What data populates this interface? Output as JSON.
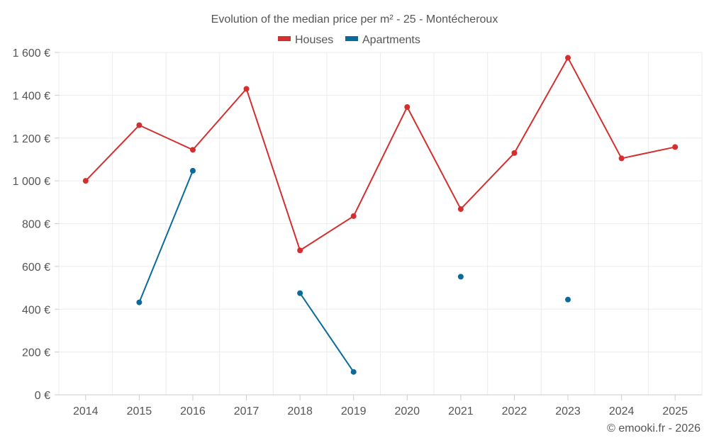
{
  "chart_data": {
    "type": "line",
    "title": "Evolution of the median price per m² - 25 - Montécheroux",
    "categories": [
      "2014",
      "2015",
      "2016",
      "2017",
      "2018",
      "2019",
      "2020",
      "2021",
      "2022",
      "2023",
      "2024",
      "2025"
    ],
    "ylim": [
      0,
      1600
    ],
    "yticks": [
      0,
      200,
      400,
      600,
      800,
      1000,
      1200,
      1400,
      1600
    ],
    "ytick_labels": [
      "0 €",
      "200 €",
      "400 €",
      "600 €",
      "800 €",
      "1 000 €",
      "1 200 €",
      "1 400 €",
      "1 600 €"
    ],
    "grid": true,
    "legend_position": "top-center",
    "series": [
      {
        "name": "Houses",
        "color": "#d32f2f",
        "values": [
          1000,
          1260,
          1145,
          1430,
          675,
          835,
          1345,
          868,
          1130,
          1575,
          1105,
          1158
        ]
      },
      {
        "name": "Apartments",
        "color": "#0a6a9c",
        "values": [
          null,
          432,
          1047,
          null,
          475,
          107,
          null,
          552,
          null,
          445,
          null,
          null
        ]
      }
    ]
  },
  "credit": "© emooki.fr - 2026"
}
